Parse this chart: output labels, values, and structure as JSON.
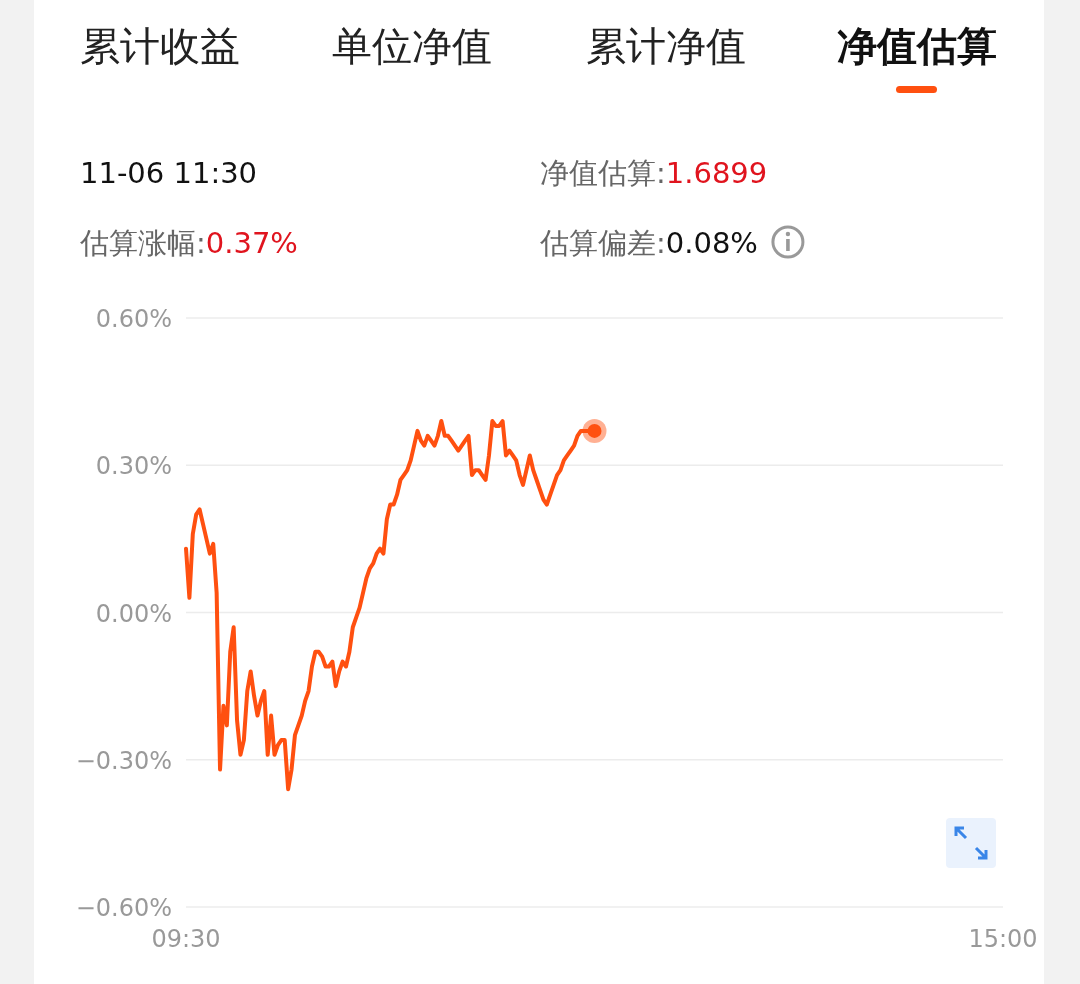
{
  "chart_data": {
    "type": "line",
    "annotations": [
      "累计收益",
      "单位净值",
      "累计净值",
      "净值估算",
      "11-06 11:30",
      "净值估算:1.6899",
      "估算涨幅:0.37%",
      "估算偏差:0.08%"
    ],
    "categories": [
      "09:30",
      null,
      null,
      null,
      null,
      null,
      null,
      null,
      null,
      null,
      null,
      null,
      null,
      null,
      null,
      null,
      null,
      null,
      null,
      null,
      null,
      null,
      null,
      null,
      null,
      null,
      null,
      null,
      null,
      null,
      null,
      null,
      null,
      null,
      null,
      null,
      null,
      null,
      null,
      null,
      null,
      null,
      null,
      null,
      null,
      null,
      null,
      null,
      null,
      null,
      null,
      null,
      null,
      null,
      null,
      null,
      null,
      null,
      null,
      null,
      null,
      null,
      null,
      null,
      null,
      null,
      null,
      null,
      null,
      null,
      null,
      null,
      null,
      null,
      null,
      null,
      null,
      null,
      null,
      null,
      null,
      null,
      null,
      null,
      null,
      null,
      null,
      null,
      null,
      null,
      null,
      null,
      null,
      null,
      null,
      null,
      null,
      null,
      null,
      null,
      null,
      null,
      null,
      null,
      null,
      null,
      null,
      null,
      null,
      null,
      null,
      null,
      null,
      null,
      null,
      null,
      null,
      null,
      null,
      null,
      null,
      null,
      null,
      null,
      null,
      null,
      null,
      null,
      null,
      null,
      null,
      null,
      null,
      null,
      null,
      null,
      null,
      null,
      null,
      null,
      null,
      null,
      null,
      null,
      null,
      null,
      null,
      null,
      null,
      null,
      null,
      null,
      null,
      null,
      null,
      null,
      null,
      null,
      null,
      null,
      null,
      null,
      null,
      null,
      null,
      null,
      null,
      null,
      null,
      null,
      null,
      null,
      null,
      null,
      null,
      null,
      null,
      null,
      null,
      null,
      null,
      null,
      null,
      null,
      null,
      null,
      null,
      null,
      null,
      null,
      null,
      null,
      null,
      null,
      null,
      null,
      null,
      null,
      null,
      null,
      null,
      null,
      null,
      null,
      null,
      null,
      null,
      null,
      null,
      null,
      null,
      null,
      null,
      null,
      null,
      null,
      null,
      null,
      null,
      null,
      null,
      null,
      null,
      null,
      null,
      null,
      null,
      null,
      null,
      null,
      null,
      null,
      null,
      null,
      null,
      null,
      null,
      null,
      null,
      null,
      "15:00"
    ],
    "series": [
      {
        "color": "#ff5010",
        "values": [
          0.13,
          0.03,
          0.16,
          0.2,
          0.21,
          0.18,
          0.15,
          0.12,
          0.14,
          0.04,
          -0.32,
          -0.19,
          -0.23,
          -0.08,
          -0.03,
          -0.22,
          -0.29,
          -0.26,
          -0.16,
          -0.12,
          -0.17,
          -0.21,
          -0.18,
          -0.16,
          -0.29,
          -0.21,
          -0.29,
          -0.27,
          -0.26,
          -0.26,
          -0.36,
          -0.32,
          -0.25,
          -0.23,
          -0.21,
          -0.18,
          -0.16,
          -0.11,
          -0.08,
          -0.08,
          -0.09,
          -0.11,
          -0.11,
          -0.1,
          -0.15,
          -0.12,
          -0.1,
          -0.11,
          -0.08,
          -0.03,
          -0.01,
          0.01,
          0.04,
          0.07,
          0.09,
          0.1,
          0.12,
          0.13,
          0.12,
          0.19,
          0.22,
          0.22,
          0.24,
          0.27,
          0.28,
          0.29,
          0.31,
          0.34,
          0.37,
          0.35,
          0.34,
          0.36,
          0.35,
          0.34,
          0.36,
          0.39,
          0.36,
          0.36,
          0.35,
          0.34,
          0.33,
          0.34,
          0.35,
          0.36,
          0.28,
          0.29,
          0.29,
          0.28,
          0.27,
          0.32,
          0.39,
          0.38,
          0.38,
          0.39,
          0.32,
          0.33,
          0.32,
          0.31,
          0.28,
          0.26,
          0.29,
          0.32,
          0.29,
          0.27,
          0.25,
          0.23,
          0.22,
          0.24,
          0.26,
          0.28,
          0.29,
          0.31,
          0.32,
          0.33,
          0.34,
          0.36,
          0.37,
          0.37,
          0.37,
          0.37,
          0.37,
          null,
          null,
          null,
          null,
          null,
          null,
          null,
          null,
          null,
          null,
          null,
          null,
          null,
          null,
          null,
          null,
          null,
          null,
          null,
          null,
          null,
          null,
          null,
          null,
          null,
          null,
          null,
          null,
          null,
          null,
          null,
          null,
          null,
          null,
          null,
          null,
          null,
          null,
          null,
          null,
          null,
          null,
          null,
          null,
          null,
          null,
          null,
          null,
          null,
          null,
          null,
          null,
          null,
          null,
          null,
          null,
          null,
          null,
          null,
          null,
          null,
          null,
          null,
          null,
          null,
          null,
          null,
          null,
          null,
          null,
          null,
          null,
          null,
          null,
          null,
          null,
          null,
          null,
          null,
          null,
          null,
          null,
          null,
          null,
          null,
          null,
          null,
          null,
          null,
          null,
          null,
          null,
          null,
          null,
          null,
          null,
          null,
          null,
          null,
          null,
          null,
          null,
          null,
          null,
          null,
          null,
          null,
          null,
          null,
          null,
          null,
          null,
          null,
          null,
          null,
          null,
          null,
          null,
          null,
          null
        ]
      }
    ],
    "ylim": [
      -0.6,
      0.6
    ],
    "yticks": [
      {
        "value": -0.6,
        "label": "−0.60%"
      },
      {
        "value": -0.3,
        "label": "−0.30%"
      },
      {
        "value": 0,
        "label": "0.00%"
      },
      {
        "value": 0.3,
        "label": "0.30%"
      },
      {
        "value": 0.6,
        "label": "0.60%"
      }
    ],
    "grid": "y",
    "marker": "none",
    "line_style": "solid"
  }
}
